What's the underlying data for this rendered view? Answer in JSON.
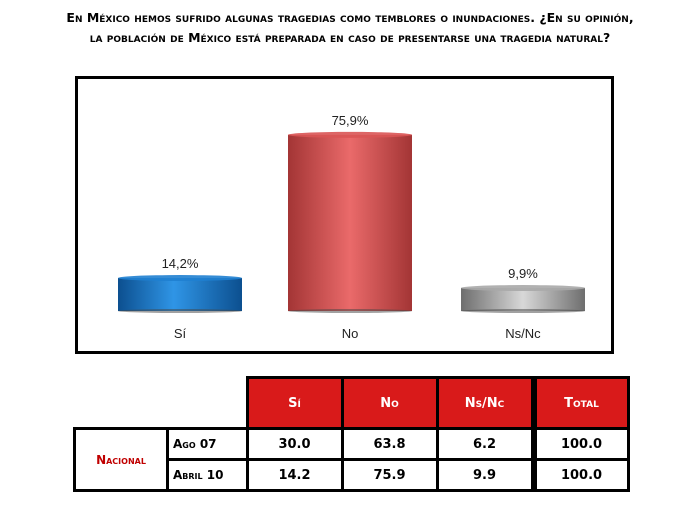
{
  "header": {
    "title_line1": "En México hemos sufrido algunas tragedias como temblores o inundaciones. ¿En su opinión,",
    "title_line2": "la población de México está preparada en caso de presentarse una tragedia natural?"
  },
  "chart_data": {
    "type": "bar",
    "categories": [
      "Sí",
      "No",
      "Ns/Nc"
    ],
    "values": [
      14.2,
      75.9,
      9.9
    ],
    "value_labels": [
      "14,2%",
      "75,9%",
      "9,9%"
    ],
    "colors": [
      "#1f7fd0",
      "#d95555",
      "#a8a8a8"
    ],
    "ylim": [
      0,
      100
    ],
    "grid": false,
    "legend": "none"
  },
  "table": {
    "headers": [
      "Sí",
      "No",
      "Ns/Nc",
      "Total"
    ],
    "region": "Nacional",
    "rows": [
      {
        "period": "Ago 07",
        "values": [
          "30.0",
          "63.8",
          "6.2",
          "100.0"
        ]
      },
      {
        "period": "Abril 10",
        "values": [
          "14.2",
          "75.9",
          "9.9",
          "100.0"
        ]
      }
    ]
  }
}
